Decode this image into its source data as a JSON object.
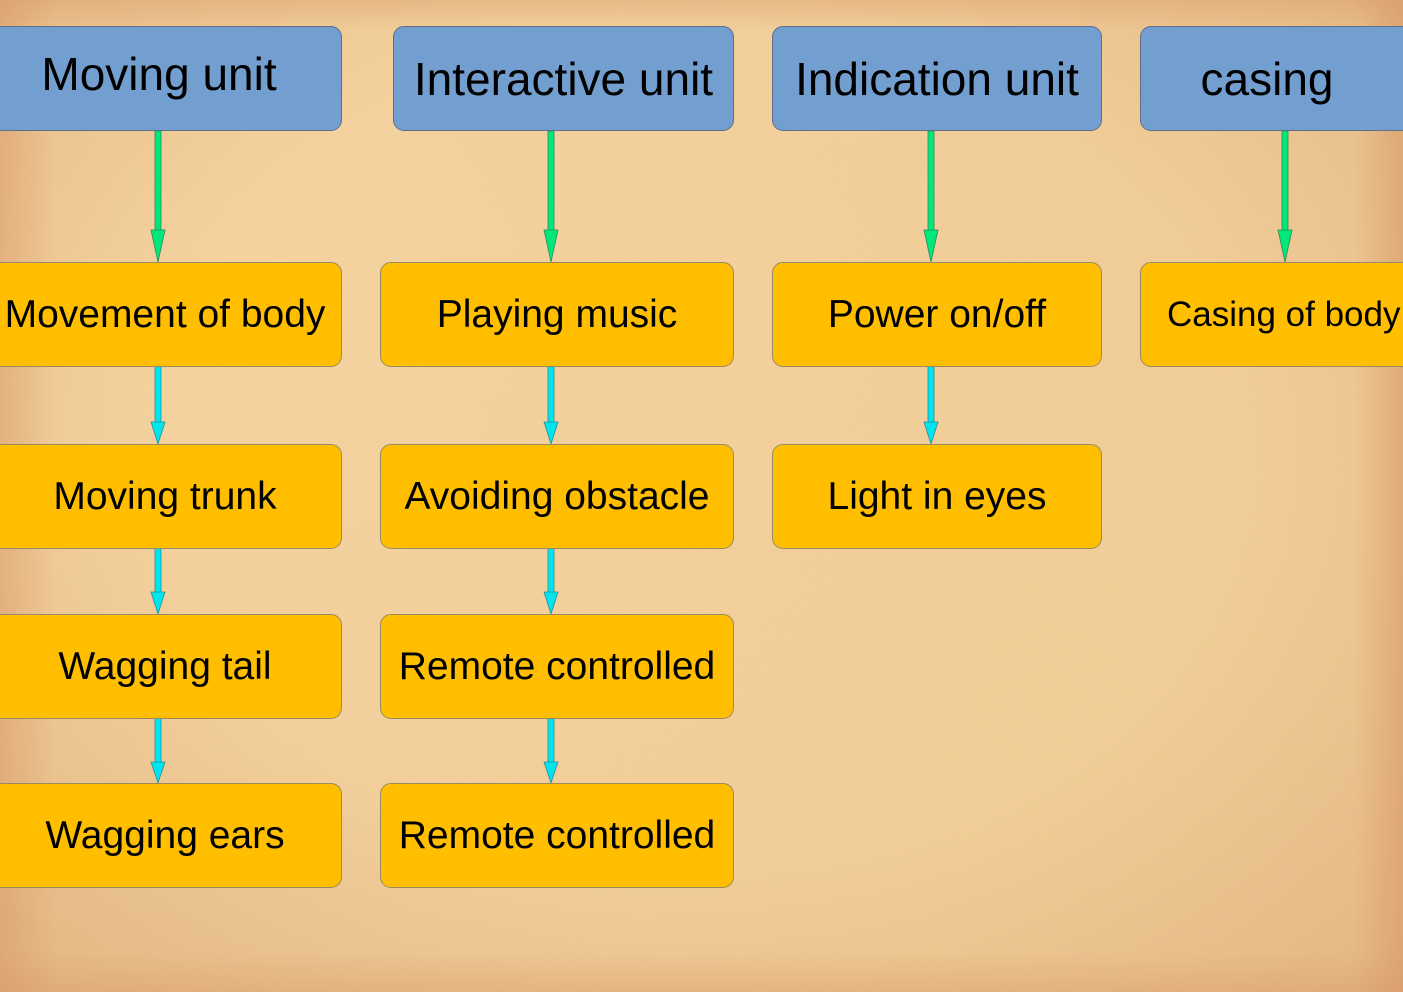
{
  "diagram": {
    "columns": [
      {
        "header": "Moving unit",
        "items": [
          "Movement of body",
          "Moving trunk",
          "Wagging tail",
          "Wagging ears"
        ]
      },
      {
        "header": "Interactive unit",
        "items": [
          "Playing music",
          "Avoiding obstacle",
          "Remote controlled",
          "Remote controlled"
        ]
      },
      {
        "header": "Indication unit",
        "items": [
          "Power on/off",
          "Light in eyes"
        ]
      },
      {
        "header": "casing",
        "items": [
          "Casing of body"
        ]
      }
    ],
    "colors": {
      "header_fill": "#729fcf",
      "item_fill": "#ffbf00",
      "header_arrow": "#00e87a",
      "item_arrow": "#00e5ee",
      "background": "#f0cc98"
    }
  }
}
